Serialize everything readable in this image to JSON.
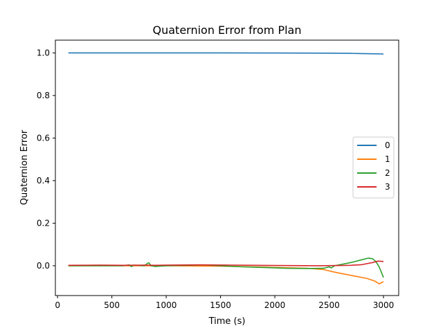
{
  "chart_data": {
    "type": "line",
    "title": "Quaternion Error from Plan",
    "xlabel": "Time (s)",
    "ylabel": "Quaternion Error",
    "xlim": [
      -20,
      3140
    ],
    "ylim": [
      -0.14,
      1.06
    ],
    "xticks": [
      0,
      500,
      1000,
      1500,
      2000,
      2500,
      3000
    ],
    "yticks": [
      0.0,
      0.2,
      0.4,
      0.6,
      0.8,
      1.0
    ],
    "xtick_labels": [
      "0",
      "500",
      "1000",
      "1500",
      "2000",
      "2500",
      "3000"
    ],
    "ytick_labels": [
      "0.0",
      "0.2",
      "0.4",
      "0.6",
      "0.8",
      "1.0"
    ],
    "grid": false,
    "legend_position": "center-right",
    "series": [
      {
        "name": "0",
        "color": "#1f77b4",
        "x": [
          100,
          500,
          1000,
          1500,
          2000,
          2500,
          2700,
          2800,
          2900,
          3000
        ],
        "y": [
          1.0,
          1.0,
          1.0,
          1.0,
          0.9995,
          0.999,
          0.998,
          0.997,
          0.996,
          0.995
        ]
      },
      {
        "name": "1",
        "color": "#ff7f0e",
        "x": [
          100,
          500,
          1000,
          1500,
          1800,
          2000,
          2300,
          2450,
          2550,
          2650,
          2750,
          2850,
          2920,
          2960,
          3000
        ],
        "y": [
          0.0,
          0.0,
          0.0,
          -0.002,
          -0.005,
          -0.008,
          -0.012,
          -0.018,
          -0.03,
          -0.04,
          -0.05,
          -0.06,
          -0.072,
          -0.085,
          -0.075
        ]
      },
      {
        "name": "2",
        "color": "#2ca02c",
        "x": [
          100,
          600,
          660,
          680,
          700,
          800,
          830,
          840,
          860,
          900,
          1000,
          1200,
          1350,
          1500,
          1700,
          1900,
          2100,
          2300,
          2450,
          2500,
          2520,
          2550,
          2600,
          2700,
          2800,
          2860,
          2900,
          2930,
          2960,
          2980,
          3000
        ],
        "y": [
          0.0,
          0.0,
          0.004,
          -0.004,
          0.003,
          0.0,
          0.012,
          0.014,
          0.0,
          -0.003,
          0.0,
          0.002,
          0.004,
          0.0,
          -0.005,
          -0.008,
          -0.012,
          -0.013,
          -0.012,
          -0.005,
          -0.01,
          0.0,
          0.005,
          0.015,
          0.028,
          0.036,
          0.033,
          0.02,
          -0.005,
          -0.03,
          -0.055
        ]
      },
      {
        "name": "3",
        "color": "#d62728",
        "x": [
          100,
          400,
          600,
          800,
          900,
          1000,
          1300,
          1600,
          2000,
          2400,
          2600,
          2700,
          2800,
          2900,
          2950,
          3000
        ],
        "y": [
          0.002,
          0.003,
          0.002,
          0.003,
          0.002,
          0.003,
          0.004,
          0.003,
          0.001,
          0.0,
          0.001,
          0.002,
          0.005,
          0.015,
          0.022,
          0.02
        ]
      }
    ]
  }
}
